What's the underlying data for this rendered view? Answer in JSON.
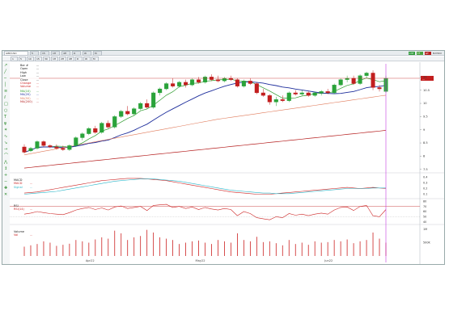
{
  "toolbar": {
    "symbol": "GBP/USD",
    "period_buttons": [
      "5",
      "15",
      "1H",
      "4H",
      "D",
      "W",
      "M"
    ],
    "badges": [
      "CHT",
      "TF",
      "GT"
    ],
    "right_label": "MATRIX"
  },
  "timeframes": [
    "1",
    "5",
    "10",
    "15",
    "30",
    "1H",
    "2H",
    "4H",
    "D",
    "W",
    "M"
  ],
  "ohlc": {
    "rows": [
      {
        "label": "Bar #",
        "value": "...",
        "color": "#222222"
      },
      {
        "label": "Open",
        "value": "...",
        "color": "#222222"
      },
      {
        "label": "High",
        "value": "...",
        "color": "#222222"
      },
      {
        "label": "Low",
        "value": "...",
        "color": "#222222"
      },
      {
        "label": "Close",
        "value": "...",
        "color": "#222222"
      },
      {
        "label": "Change",
        "value": "...",
        "color": "#cc2222"
      },
      {
        "label": "Volume",
        "value": "...",
        "color": "#cc2222"
      }
    ]
  },
  "ma_legend": [
    {
      "label": "MA(10)",
      "value": "...",
      "color": "#2a9a2a"
    },
    {
      "label": "MA(20)",
      "value": "...",
      "color": "#1e2e9c"
    },
    {
      "label": "MA(50)",
      "value": "...",
      "color": "#e07a5a"
    },
    {
      "label": "MA(200)",
      "value": "...",
      "color": "#b51e1e"
    }
  ],
  "macd_legend": {
    "title": "MACD",
    "rows": [
      {
        "label": "MACD",
        "value": "...",
        "color": "#cc2222"
      },
      {
        "label": "Signal",
        "value": "...",
        "color": "#2ab5c8"
      }
    ]
  },
  "rsi_legend": {
    "title": "RSI",
    "rows": [
      {
        "label": "RSI(14)",
        "value": "...",
        "color": "#cc2222"
      }
    ]
  },
  "vol_legend": {
    "title": "Volume",
    "rows": [
      {
        "label": "Vol",
        "value": "...",
        "color": "#cc2222"
      }
    ]
  },
  "price_tag": "...",
  "price_axis": [
    "11",
    "10.5",
    "10",
    "9.5",
    "9",
    "8.5",
    "8",
    "7.5"
  ],
  "macd_axis": [
    "0.4",
    "0.3",
    "0.2",
    "0.1"
  ],
  "rsi_axis": [
    "80",
    "70",
    "60",
    "50",
    "40"
  ],
  "vol_axis": [
    "1M",
    "500K"
  ],
  "x_axis": [
    "Apr22",
    "May22",
    "Jun22"
  ],
  "colors": {
    "up": "#2aa33a",
    "down": "#c21e1e",
    "ma_fast": "#2a9a2a",
    "ma_mid": "#1e2e9c",
    "ma_slow": "#e07a5a",
    "ma_long": "#b51e1e",
    "signal": "#2ab5c8",
    "cursor": "#c43adf"
  },
  "chart_data": {
    "type": "candlestick",
    "candles": [
      {
        "o": 8.35,
        "h": 8.45,
        "l": 8.1,
        "c": 8.15
      },
      {
        "o": 8.2,
        "h": 8.35,
        "l": 8.15,
        "c": 8.3
      },
      {
        "o": 8.3,
        "h": 8.6,
        "l": 8.25,
        "c": 8.55
      },
      {
        "o": 8.55,
        "h": 8.6,
        "l": 8.35,
        "c": 8.4
      },
      {
        "o": 8.4,
        "h": 8.45,
        "l": 8.3,
        "c": 8.35
      },
      {
        "o": 8.35,
        "h": 8.45,
        "l": 8.25,
        "c": 8.3
      },
      {
        "o": 8.3,
        "h": 8.4,
        "l": 8.2,
        "c": 8.25
      },
      {
        "o": 8.25,
        "h": 8.45,
        "l": 8.2,
        "c": 8.4
      },
      {
        "o": 8.4,
        "h": 8.75,
        "l": 8.35,
        "c": 8.7
      },
      {
        "o": 8.7,
        "h": 8.9,
        "l": 8.6,
        "c": 8.85
      },
      {
        "o": 8.85,
        "h": 9.1,
        "l": 8.8,
        "c": 9.05
      },
      {
        "o": 9.05,
        "h": 9.15,
        "l": 8.85,
        "c": 8.9
      },
      {
        "o": 8.9,
        "h": 9.3,
        "l": 8.85,
        "c": 9.25
      },
      {
        "o": 9.25,
        "h": 9.35,
        "l": 9.05,
        "c": 9.1
      },
      {
        "o": 9.1,
        "h": 9.55,
        "l": 9.05,
        "c": 9.5
      },
      {
        "o": 9.5,
        "h": 9.75,
        "l": 9.45,
        "c": 9.7
      },
      {
        "o": 9.7,
        "h": 9.9,
        "l": 9.55,
        "c": 9.6
      },
      {
        "o": 9.6,
        "h": 9.85,
        "l": 9.55,
        "c": 9.8
      },
      {
        "o": 9.8,
        "h": 10.05,
        "l": 9.75,
        "c": 10.0
      },
      {
        "o": 10.0,
        "h": 10.15,
        "l": 9.8,
        "c": 9.85
      },
      {
        "o": 9.85,
        "h": 10.45,
        "l": 9.8,
        "c": 10.4
      },
      {
        "o": 10.4,
        "h": 10.6,
        "l": 10.3,
        "c": 10.55
      },
      {
        "o": 10.55,
        "h": 10.8,
        "l": 10.5,
        "c": 10.75
      },
      {
        "o": 10.75,
        "h": 10.95,
        "l": 10.6,
        "c": 10.65
      },
      {
        "o": 10.65,
        "h": 10.85,
        "l": 10.6,
        "c": 10.8
      },
      {
        "o": 10.8,
        "h": 10.9,
        "l": 10.6,
        "c": 10.7
      },
      {
        "o": 10.7,
        "h": 10.95,
        "l": 10.65,
        "c": 10.9
      },
      {
        "o": 10.9,
        "h": 11.0,
        "l": 10.75,
        "c": 10.8
      },
      {
        "o": 10.8,
        "h": 11.05,
        "l": 10.75,
        "c": 11.0
      },
      {
        "o": 11.0,
        "h": 11.1,
        "l": 10.85,
        "c": 10.9
      },
      {
        "o": 10.9,
        "h": 11.05,
        "l": 10.8,
        "c": 10.85
      },
      {
        "o": 10.85,
        "h": 11.0,
        "l": 10.8,
        "c": 10.95
      },
      {
        "o": 10.95,
        "h": 11.05,
        "l": 10.85,
        "c": 10.9
      },
      {
        "o": 10.9,
        "h": 10.95,
        "l": 10.6,
        "c": 10.65
      },
      {
        "o": 10.65,
        "h": 10.9,
        "l": 10.6,
        "c": 10.85
      },
      {
        "o": 10.85,
        "h": 10.95,
        "l": 10.7,
        "c": 10.75
      },
      {
        "o": 10.75,
        "h": 10.8,
        "l": 10.35,
        "c": 10.4
      },
      {
        "o": 10.4,
        "h": 10.55,
        "l": 10.25,
        "c": 10.3
      },
      {
        "o": 10.3,
        "h": 10.35,
        "l": 9.95,
        "c": 10.05
      },
      {
        "o": 10.05,
        "h": 10.25,
        "l": 9.9,
        "c": 10.15
      },
      {
        "o": 10.15,
        "h": 10.3,
        "l": 10.05,
        "c": 10.1
      },
      {
        "o": 10.1,
        "h": 10.45,
        "l": 10.05,
        "c": 10.4
      },
      {
        "o": 10.4,
        "h": 10.5,
        "l": 10.3,
        "c": 10.35
      },
      {
        "o": 10.35,
        "h": 10.5,
        "l": 10.3,
        "c": 10.4
      },
      {
        "o": 10.4,
        "h": 10.45,
        "l": 10.25,
        "c": 10.3
      },
      {
        "o": 10.3,
        "h": 10.45,
        "l": 10.25,
        "c": 10.4
      },
      {
        "o": 10.4,
        "h": 10.5,
        "l": 10.3,
        "c": 10.45
      },
      {
        "o": 10.45,
        "h": 10.55,
        "l": 10.35,
        "c": 10.4
      },
      {
        "o": 10.4,
        "h": 10.75,
        "l": 10.35,
        "c": 10.7
      },
      {
        "o": 10.7,
        "h": 10.95,
        "l": 10.65,
        "c": 10.9
      },
      {
        "o": 10.9,
        "h": 11.05,
        "l": 10.8,
        "c": 10.95
      },
      {
        "o": 10.95,
        "h": 11.05,
        "l": 10.7,
        "c": 10.75
      },
      {
        "o": 10.75,
        "h": 11.1,
        "l": 10.7,
        "c": 11.05
      },
      {
        "o": 11.05,
        "h": 11.2,
        "l": 10.95,
        "c": 11.15
      },
      {
        "o": 11.15,
        "h": 11.25,
        "l": 10.5,
        "c": 10.6
      },
      {
        "o": 10.6,
        "h": 10.7,
        "l": 10.45,
        "c": 10.55
      },
      {
        "o": 10.45,
        "h": 11.05,
        "l": 10.4,
        "c": 10.95
      }
    ],
    "macd": [
      0.12,
      0.13,
      0.14,
      0.16,
      0.18,
      0.2,
      0.22,
      0.24,
      0.26,
      0.28,
      0.3,
      0.32,
      0.34,
      0.35,
      0.36,
      0.37,
      0.38,
      0.38,
      0.38,
      0.37,
      0.36,
      0.35,
      0.34,
      0.32,
      0.3,
      0.28,
      0.26,
      0.24,
      0.22,
      0.2,
      0.18,
      0.16,
      0.14,
      0.13,
      0.12,
      0.11,
      0.1,
      0.1,
      0.1,
      0.11,
      0.12,
      0.13,
      0.14,
      0.15,
      0.16,
      0.17,
      0.18,
      0.19,
      0.2,
      0.21,
      0.22,
      0.21,
      0.2,
      0.21,
      0.22,
      0.21,
      0.2
    ],
    "signal": [
      0.1,
      0.11,
      0.12,
      0.13,
      0.14,
      0.15,
      0.17,
      0.19,
      0.21,
      0.23,
      0.25,
      0.27,
      0.29,
      0.31,
      0.33,
      0.34,
      0.35,
      0.36,
      0.37,
      0.37,
      0.37,
      0.36,
      0.35,
      0.34,
      0.33,
      0.31,
      0.29,
      0.27,
      0.25,
      0.23,
      0.21,
      0.19,
      0.17,
      0.16,
      0.15,
      0.14,
      0.13,
      0.12,
      0.12,
      0.11,
      0.11,
      0.11,
      0.12,
      0.13,
      0.14,
      0.15,
      0.16,
      0.17,
      0.18,
      0.19,
      0.2,
      0.2,
      0.2,
      0.2,
      0.21,
      0.21,
      0.21
    ],
    "rsi": [
      55,
      57,
      60,
      58,
      56,
      55,
      54,
      58,
      63,
      66,
      68,
      64,
      67,
      63,
      69,
      71,
      66,
      68,
      70,
      62,
      72,
      73,
      74,
      68,
      70,
      66,
      69,
      64,
      68,
      65,
      63,
      66,
      64,
      52,
      60,
      56,
      48,
      46,
      44,
      50,
      48,
      56,
      53,
      55,
      52,
      55,
      57,
      55,
      63,
      68,
      69,
      62,
      70,
      72,
      52,
      50,
      64
    ],
    "volume": [
      0.35,
      0.4,
      0.45,
      0.55,
      0.5,
      0.38,
      0.42,
      0.46,
      0.6,
      0.55,
      0.5,
      0.62,
      0.7,
      0.65,
      0.95,
      0.85,
      0.6,
      0.7,
      0.75,
      0.98,
      0.88,
      0.7,
      0.65,
      0.6,
      0.45,
      0.5,
      0.55,
      0.58,
      0.5,
      0.45,
      0.6,
      0.55,
      0.5,
      0.85,
      0.6,
      0.55,
      0.72,
      0.52,
      0.55,
      0.48,
      0.4,
      0.6,
      0.45,
      0.5,
      0.42,
      0.55,
      0.5,
      0.52,
      0.6,
      0.55,
      0.62,
      0.48,
      0.55,
      0.6,
      0.88,
      0.65,
      0.5
    ]
  }
}
